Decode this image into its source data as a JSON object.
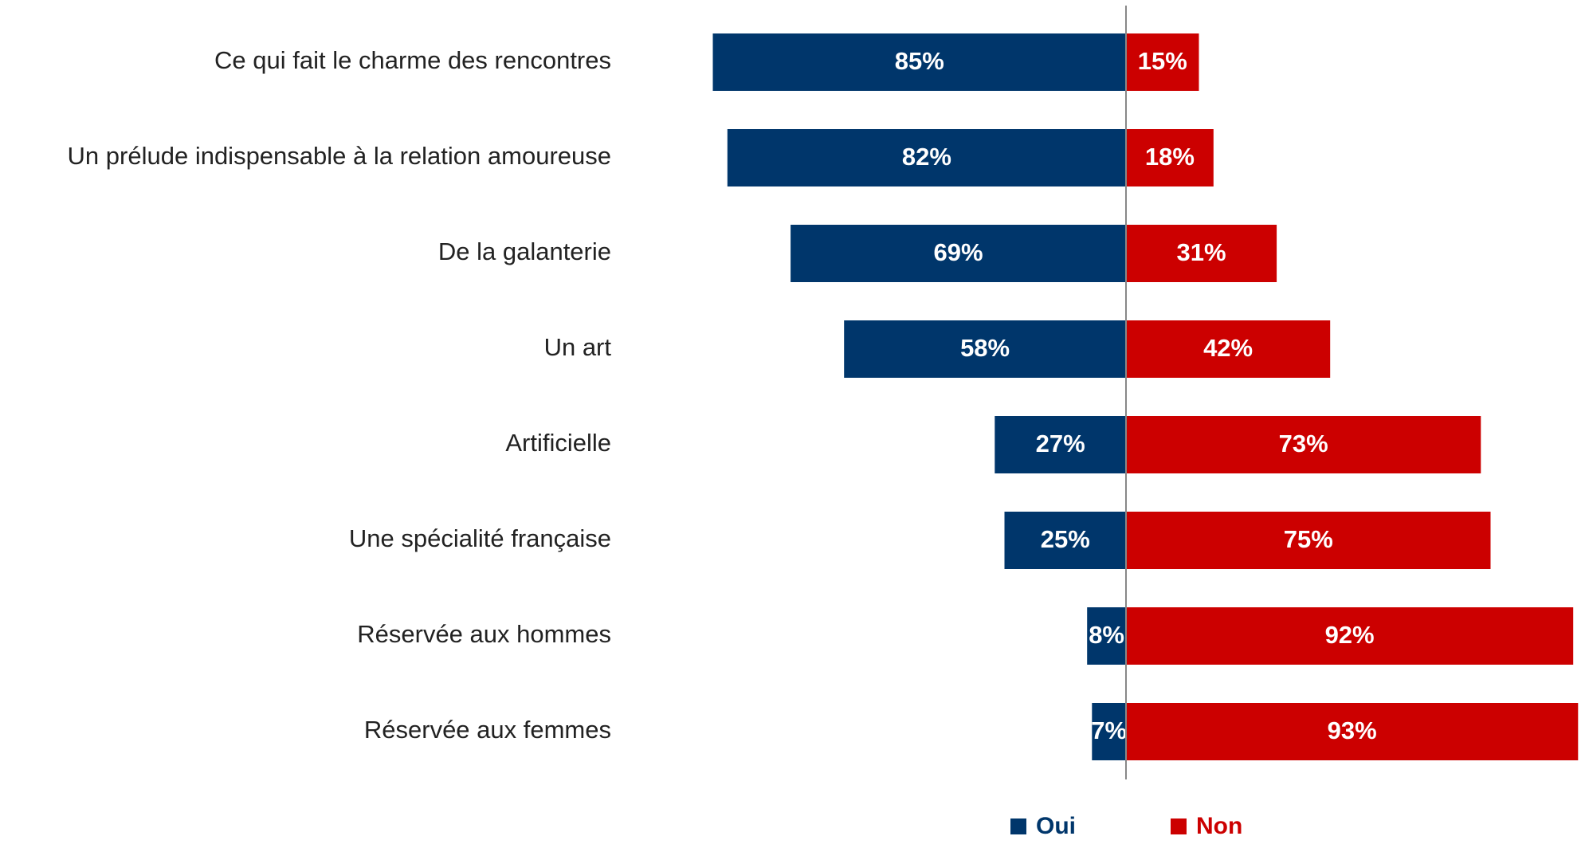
{
  "chart_data": {
    "type": "diverging_bar",
    "categories": [
      "Ce qui fait le charme des rencontres",
      "Un prélude indispensable à la relation amoureuse",
      "De la galanterie",
      "Un art",
      "Artificielle",
      "Une spécialité française",
      "Réservée aux hommes",
      "Réservée aux femmes"
    ],
    "series": [
      {
        "name": "Oui",
        "color": "#00366b",
        "values": [
          85,
          82,
          69,
          58,
          27,
          25,
          8,
          7
        ],
        "value_labels": [
          "85%",
          "82%",
          "69%",
          "58%",
          "27%",
          "25%",
          "8%",
          "7%"
        ]
      },
      {
        "name": "Non",
        "color": "#cc0000",
        "values": [
          15,
          18,
          31,
          42,
          73,
          75,
          92,
          93
        ],
        "value_labels": [
          "15%",
          "18%",
          "31%",
          "42%",
          "73%",
          "75%",
          "92%",
          "93%"
        ]
      }
    ]
  }
}
